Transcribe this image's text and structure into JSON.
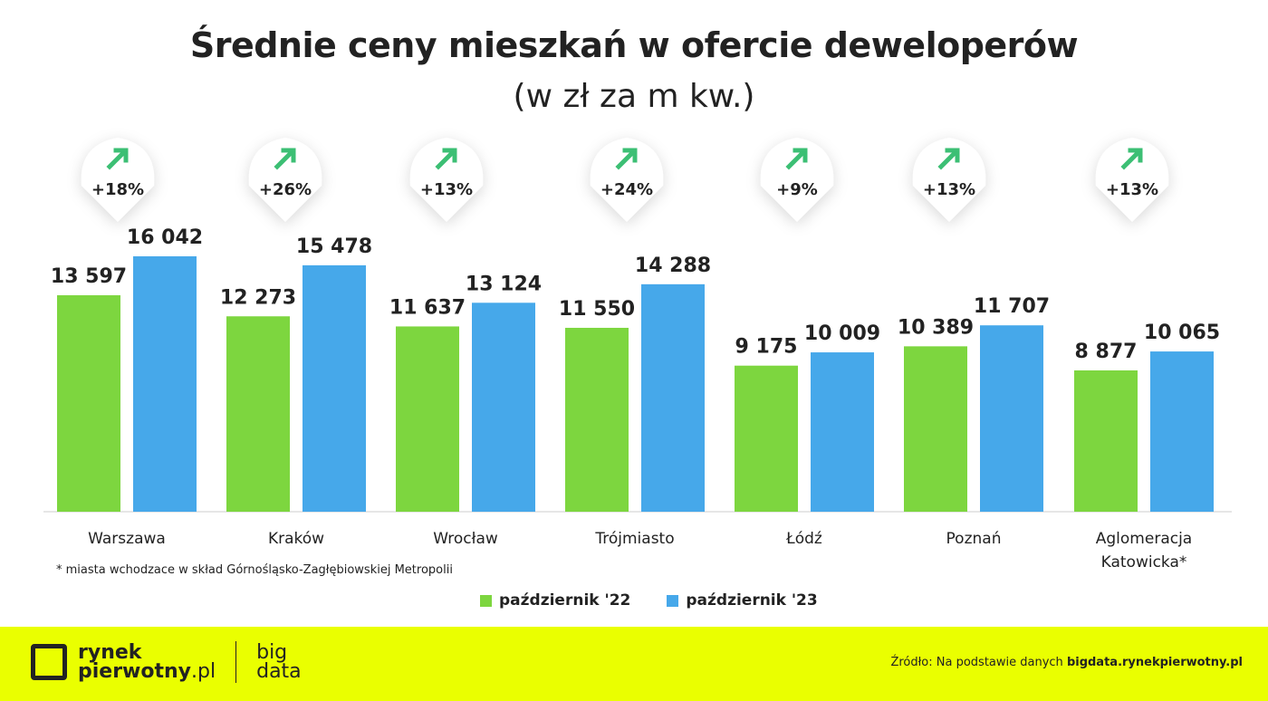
{
  "colors": {
    "green": "#7dd63f",
    "blue": "#46a8ea",
    "arrow": "#3cbf74",
    "footer": "#eaff00"
  },
  "chart_data": {
    "type": "bar",
    "title": "Średnie ceny mieszkań w ofercie deweloperów",
    "subtitle": "(w zł za m kw.)",
    "categories": [
      "Warszawa",
      "Kraków",
      "Wrocław",
      "Trójmiasto",
      "Łódź",
      "Poznań",
      "Aglomeracja Katowicka*"
    ],
    "series": [
      {
        "name": "październik '22",
        "values": [
          13597,
          12273,
          11637,
          11550,
          9175,
          10389,
          8877
        ],
        "labels": [
          "13 597",
          "12 273",
          "11 637",
          "11 550",
          "9 175",
          "10 389",
          "8 877"
        ]
      },
      {
        "name": "październik '23",
        "values": [
          16042,
          15478,
          13124,
          14288,
          10009,
          11707,
          10065
        ],
        "labels": [
          "16 042",
          "15 478",
          "13 124",
          "14 288",
          "10 009",
          "11 707",
          "10 065"
        ]
      }
    ],
    "changes": [
      "+18%",
      "+26%",
      "+13%",
      "+24%",
      "+9%",
      "+13%",
      "+13%"
    ],
    "change_icon": "arrow-up-right-icon",
    "ylim": [
      0,
      16042
    ],
    "grid": false,
    "legend": "bottom"
  },
  "note": "* miasta wchodzace w skład Górnośląsko-Zagłębiowskiej Metropolii",
  "footer": {
    "logo_line1": "rynek",
    "logo_line2": "pierwotny",
    "logo_tld": ".pl",
    "bd_line1": "big",
    "bd_line2": "data",
    "source_prefix": "Źródło: Na podstawie danych ",
    "source_site": "bigdata.rynekpierwotny.pl"
  }
}
